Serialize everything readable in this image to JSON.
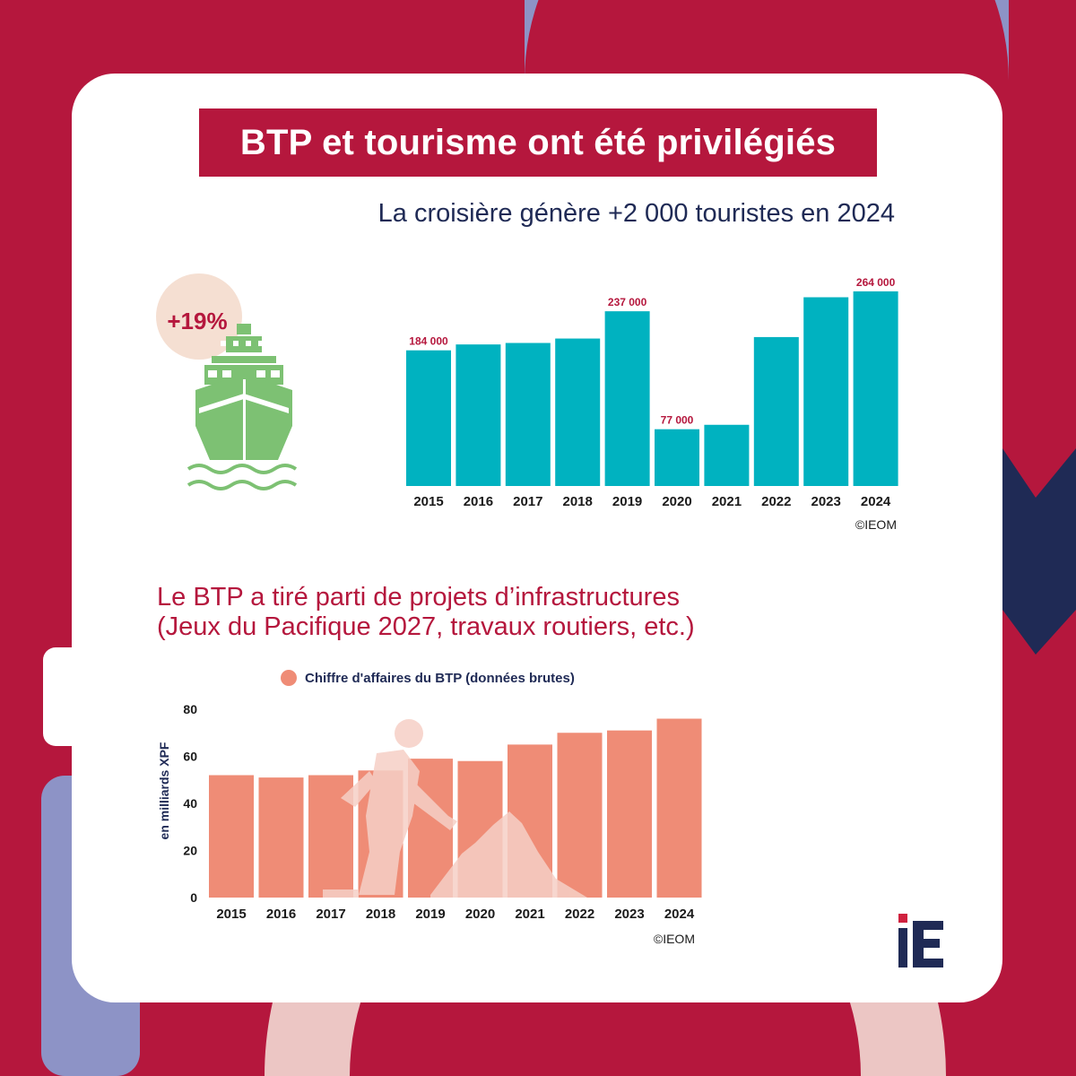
{
  "title": "BTP et tourisme ont été privilégiés",
  "subtitle_tourism": "La croisière génère +2 000 touristes en 2024",
  "badge": "+19%",
  "subtitle_btp_line1": "Le BTP a tiré parti de projets d’infrastructures",
  "subtitle_btp_line2": "(Jeux du Pacifique 2027, travaux routiers, etc.)",
  "logo_text": "iE",
  "colors": {
    "background": "#b5173d",
    "teal": "#00b2c0",
    "salmon": "#ef8c76",
    "label_red": "#b5173d",
    "navy": "#1f2a55",
    "ship_green": "#7dc173",
    "badge_circle": "#f5dfd2",
    "lavender": "#8d93c6"
  },
  "chart_data": [
    {
      "type": "bar",
      "categories": [
        "2015",
        "2016",
        "2017",
        "2018",
        "2019",
        "2020",
        "2021",
        "2022",
        "2023",
        "2024"
      ],
      "values": [
        184000,
        192000,
        194000,
        200000,
        237000,
        77000,
        83000,
        202000,
        256000,
        264000
      ],
      "data_labels": [
        {
          "category": "2015",
          "text": "184 000"
        },
        {
          "category": "2019",
          "text": "237 000"
        },
        {
          "category": "2020",
          "text": "77 000"
        },
        {
          "category": "2024",
          "text": "264 000"
        }
      ],
      "ylim": [
        0,
        270000
      ],
      "grid": false,
      "source": "©IEOM"
    },
    {
      "type": "bar",
      "categories": [
        "2015",
        "2016",
        "2017",
        "2018",
        "2019",
        "2020",
        "2021",
        "2022",
        "2023",
        "2024"
      ],
      "series": [
        {
          "name": "Chiffre d'affaires du BTP (données brutes)",
          "values": [
            52,
            51,
            52,
            54,
            59,
            58,
            65,
            70,
            71,
            76
          ]
        }
      ],
      "ylabel": "en milliards XPF",
      "yticks": [
        0,
        20,
        40,
        60,
        80
      ],
      "ylim": [
        0,
        80
      ],
      "legend": "top",
      "grid": false,
      "source": "©IEOM"
    }
  ]
}
